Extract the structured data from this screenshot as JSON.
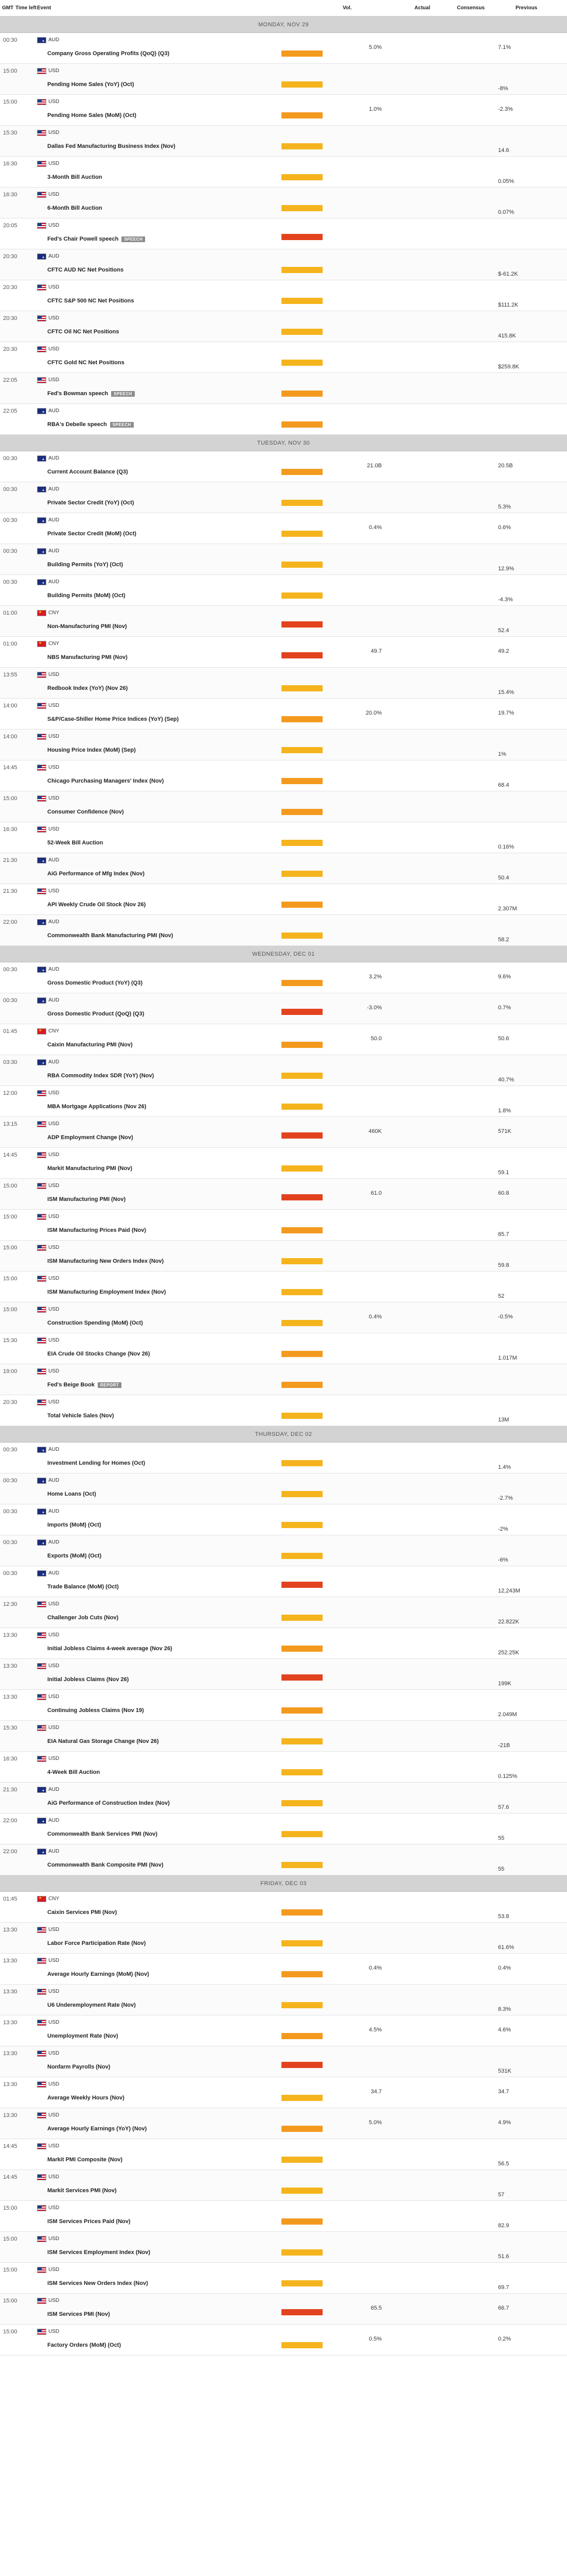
{
  "header": {
    "gmt": "GMT",
    "time_left": "Time left",
    "event": "Event",
    "vol": "Vol.",
    "actual": "Actual",
    "consensus": "Consensus",
    "previous": "Previous"
  },
  "days": [
    {
      "label": "MONDAY, NOV 29",
      "events": [
        {
          "time": "00:30",
          "currency": "AUD",
          "name": "Company Gross Operating Profits (QoQ) (Q3)",
          "volatility": "medium",
          "actual": "",
          "consensus": "5.0%",
          "previous": "7.1%"
        },
        {
          "time": "15:00",
          "currency": "USD",
          "name": "Pending Home Sales (YoY) (Oct)",
          "volatility": "low",
          "actual": "",
          "consensus": "",
          "previous": "-8%"
        },
        {
          "time": "15:00",
          "currency": "USD",
          "name": "Pending Home Sales (MoM) (Oct)",
          "volatility": "medium",
          "actual": "",
          "consensus": "1.0%",
          "previous": "-2.3%"
        },
        {
          "time": "15:30",
          "currency": "USD",
          "name": "Dallas Fed Manufacturing Business Index (Nov)",
          "volatility": "low",
          "actual": "",
          "consensus": "",
          "previous": "14.6"
        },
        {
          "time": "16:30",
          "currency": "USD",
          "name": "3-Month Bill Auction",
          "volatility": "low",
          "actual": "",
          "consensus": "",
          "previous": "0.05%"
        },
        {
          "time": "16:30",
          "currency": "USD",
          "name": "6-Month Bill Auction",
          "volatility": "low",
          "actual": "",
          "consensus": "",
          "previous": "0.07%"
        },
        {
          "time": "20:05",
          "currency": "USD",
          "name": "Fed's Chair Powell speech",
          "tag": "SPEECH",
          "volatility": "high",
          "actual": "",
          "consensus": "",
          "previous": ""
        },
        {
          "time": "20:30",
          "currency": "AUD",
          "name": "CFTC AUD NC Net Positions",
          "volatility": "low",
          "actual": "",
          "consensus": "",
          "previous": "$-61.2K"
        },
        {
          "time": "20:30",
          "currency": "USD",
          "name": "CFTC S&P 500 NC Net Positions",
          "volatility": "low",
          "actual": "",
          "consensus": "",
          "previous": "$111.2K"
        },
        {
          "time": "20:30",
          "currency": "USD",
          "name": "CFTC Oil NC Net Positions",
          "volatility": "low",
          "actual": "",
          "consensus": "",
          "previous": "415.8K"
        },
        {
          "time": "20:30",
          "currency": "USD",
          "name": "CFTC Gold NC Net Positions",
          "volatility": "low",
          "actual": "",
          "consensus": "",
          "previous": "$259.8K"
        },
        {
          "time": "22:05",
          "currency": "USD",
          "name": "Fed's Bowman speech",
          "tag": "SPEECH",
          "volatility": "medium",
          "actual": "",
          "consensus": "",
          "previous": ""
        },
        {
          "time": "22:05",
          "currency": "AUD",
          "name": "RBA's Debelle speech",
          "tag": "SPEECH",
          "volatility": "medium",
          "actual": "",
          "consensus": "",
          "previous": ""
        }
      ]
    },
    {
      "label": "TUESDAY, NOV 30",
      "events": [
        {
          "time": "00:30",
          "currency": "AUD",
          "name": "Current Account Balance (Q3)",
          "volatility": "medium",
          "actual": "",
          "consensus": "21.0B",
          "previous": "20.5B"
        },
        {
          "time": "00:30",
          "currency": "AUD",
          "name": "Private Sector Credit (YoY) (Oct)",
          "volatility": "low",
          "actual": "",
          "consensus": "",
          "previous": "5.3%"
        },
        {
          "time": "00:30",
          "currency": "AUD",
          "name": "Private Sector Credit (MoM) (Oct)",
          "volatility": "low",
          "actual": "",
          "consensus": "0.4%",
          "previous": "0.6%"
        },
        {
          "time": "00:30",
          "currency": "AUD",
          "name": "Building Permits (YoY) (Oct)",
          "volatility": "low",
          "actual": "",
          "consensus": "",
          "previous": "12.9%"
        },
        {
          "time": "00:30",
          "currency": "AUD",
          "name": "Building Permits (MoM) (Oct)",
          "volatility": "low",
          "actual": "",
          "consensus": "",
          "previous": "-4.3%"
        },
        {
          "time": "01:00",
          "currency": "CNY",
          "name": "Non-Manufacturing PMI (Nov)",
          "volatility": "high",
          "actual": "",
          "consensus": "",
          "previous": "52.4"
        },
        {
          "time": "01:00",
          "currency": "CNY",
          "name": "NBS Manufacturing PMI (Nov)",
          "volatility": "high",
          "actual": "",
          "consensus": "49.7",
          "previous": "49.2"
        },
        {
          "time": "13:55",
          "currency": "USD",
          "name": "Redbook Index (YoY) (Nov 26)",
          "volatility": "low",
          "actual": "",
          "consensus": "",
          "previous": "15.4%"
        },
        {
          "time": "14:00",
          "currency": "USD",
          "name": "S&P/Case-Shiller Home Price Indices (YoY) (Sep)",
          "volatility": "medium",
          "actual": "",
          "consensus": "20.0%",
          "previous": "19.7%"
        },
        {
          "time": "14:00",
          "currency": "USD",
          "name": "Housing Price Index (MoM) (Sep)",
          "volatility": "low",
          "actual": "",
          "consensus": "",
          "previous": "1%"
        },
        {
          "time": "14:45",
          "currency": "USD",
          "name": "Chicago Purchasing Managers' Index (Nov)",
          "volatility": "medium",
          "actual": "",
          "consensus": "",
          "previous": "68.4"
        },
        {
          "time": "15:00",
          "currency": "USD",
          "name": "Consumer Confidence (Nov)",
          "volatility": "medium",
          "actual": "",
          "consensus": "",
          "previous": ""
        },
        {
          "time": "16:30",
          "currency": "USD",
          "name": "52-Week Bill Auction",
          "volatility": "low",
          "actual": "",
          "consensus": "",
          "previous": "0.16%"
        },
        {
          "time": "21:30",
          "currency": "AUD",
          "name": "AiG Performance of Mfg Index (Nov)",
          "volatility": "low",
          "actual": "",
          "consensus": "",
          "previous": "50.4"
        },
        {
          "time": "21:30",
          "currency": "USD",
          "name": "API Weekly Crude Oil Stock (Nov 26)",
          "volatility": "medium",
          "actual": "",
          "consensus": "",
          "previous": "2.307M"
        },
        {
          "time": "22:00",
          "currency": "AUD",
          "name": "Commonwealth Bank Manufacturing PMI (Nov)",
          "volatility": "low",
          "actual": "",
          "consensus": "",
          "previous": "58.2"
        }
      ]
    },
    {
      "label": "WEDNESDAY, DEC 01",
      "events": [
        {
          "time": "00:30",
          "currency": "AUD",
          "name": "Gross Domestic Product (YoY) (Q3)",
          "volatility": "medium",
          "actual": "",
          "consensus": "3.2%",
          "previous": "9.6%"
        },
        {
          "time": "00:30",
          "currency": "AUD",
          "name": "Gross Domestic Product (QoQ) (Q3)",
          "volatility": "high",
          "actual": "",
          "consensus": "-3.0%",
          "previous": "0.7%"
        },
        {
          "time": "01:45",
          "currency": "CNY",
          "name": "Caixin Manufacturing PMI (Nov)",
          "volatility": "medium",
          "actual": "",
          "consensus": "50.0",
          "previous": "50.6"
        },
        {
          "time": "03:30",
          "currency": "AUD",
          "name": "RBA Commodity Index SDR (YoY) (Nov)",
          "volatility": "low",
          "actual": "",
          "consensus": "",
          "previous": "40.7%"
        },
        {
          "time": "12:00",
          "currency": "USD",
          "name": "MBA Mortgage Applications (Nov 26)",
          "volatility": "low",
          "actual": "",
          "consensus": "",
          "previous": "1.8%"
        },
        {
          "time": "13:15",
          "currency": "USD",
          "name": "ADP Employment Change (Nov)",
          "volatility": "high",
          "actual": "",
          "consensus": "460K",
          "previous": "571K"
        },
        {
          "time": "14:45",
          "currency": "USD",
          "name": "Markit Manufacturing PMI (Nov)",
          "volatility": "low",
          "actual": "",
          "consensus": "",
          "previous": "59.1"
        },
        {
          "time": "15:00",
          "currency": "USD",
          "name": "ISM Manufacturing PMI (Nov)",
          "volatility": "high",
          "actual": "",
          "consensus": "61.0",
          "previous": "60.8"
        },
        {
          "time": "15:00",
          "currency": "USD",
          "name": "ISM Manufacturing Prices Paid (Nov)",
          "volatility": "medium",
          "actual": "",
          "consensus": "",
          "previous": "85.7"
        },
        {
          "time": "15:00",
          "currency": "USD",
          "name": "ISM Manufacturing New Orders Index (Nov)",
          "volatility": "low",
          "actual": "",
          "consensus": "",
          "previous": "59.8"
        },
        {
          "time": "15:00",
          "currency": "USD",
          "name": "ISM Manufacturing Employment Index (Nov)",
          "volatility": "low",
          "actual": "",
          "consensus": "",
          "previous": "52"
        },
        {
          "time": "15:00",
          "currency": "USD",
          "name": "Construction Spending (MoM) (Oct)",
          "volatility": "low",
          "actual": "",
          "consensus": "0.4%",
          "previous": "-0.5%"
        },
        {
          "time": "15:30",
          "currency": "USD",
          "name": "EIA Crude Oil Stocks Change (Nov 26)",
          "volatility": "medium",
          "actual": "",
          "consensus": "",
          "previous": "1.017M"
        },
        {
          "time": "19:00",
          "currency": "USD",
          "name": "Fed's Beige Book",
          "tag": "REPORT",
          "volatility": "medium",
          "actual": "",
          "consensus": "",
          "previous": ""
        },
        {
          "time": "20:30",
          "currency": "USD",
          "name": "Total Vehicle Sales (Nov)",
          "volatility": "low",
          "actual": "",
          "consensus": "",
          "previous": "13M"
        }
      ]
    },
    {
      "label": "THURSDAY, DEC 02",
      "events": [
        {
          "time": "00:30",
          "currency": "AUD",
          "name": "Investment Lending for Homes (Oct)",
          "volatility": "low",
          "actual": "",
          "consensus": "",
          "previous": "1.4%"
        },
        {
          "time": "00:30",
          "currency": "AUD",
          "name": "Home Loans (Oct)",
          "volatility": "low",
          "actual": "",
          "consensus": "",
          "previous": "-2.7%"
        },
        {
          "time": "00:30",
          "currency": "AUD",
          "name": "Imports (MoM) (Oct)",
          "volatility": "low",
          "actual": "",
          "consensus": "",
          "previous": "-2%"
        },
        {
          "time": "00:30",
          "currency": "AUD",
          "name": "Exports (MoM) (Oct)",
          "volatility": "low",
          "actual": "",
          "consensus": "",
          "previous": "-6%"
        },
        {
          "time": "00:30",
          "currency": "AUD",
          "name": "Trade Balance (MoM) (Oct)",
          "volatility": "high",
          "actual": "",
          "consensus": "",
          "previous": "12,243M"
        },
        {
          "time": "12:30",
          "currency": "USD",
          "name": "Challenger Job Cuts (Nov)",
          "volatility": "low",
          "actual": "",
          "consensus": "",
          "previous": "22.822K"
        },
        {
          "time": "13:30",
          "currency": "USD",
          "name": "Initial Jobless Claims 4-week average (Nov 26)",
          "volatility": "medium",
          "actual": "",
          "consensus": "",
          "previous": "252.25K"
        },
        {
          "time": "13:30",
          "currency": "USD",
          "name": "Initial Jobless Claims (Nov 26)",
          "volatility": "high",
          "actual": "",
          "consensus": "",
          "previous": "199K"
        },
        {
          "time": "13:30",
          "currency": "USD",
          "name": "Continuing Jobless Claims (Nov 19)",
          "volatility": "medium",
          "actual": "",
          "consensus": "",
          "previous": "2.049M"
        },
        {
          "time": "15:30",
          "currency": "USD",
          "name": "EIA Natural Gas Storage Change (Nov 26)",
          "volatility": "low",
          "actual": "",
          "consensus": "",
          "previous": "-21B"
        },
        {
          "time": "16:30",
          "currency": "USD",
          "name": "4-Week Bill Auction",
          "volatility": "low",
          "actual": "",
          "consensus": "",
          "previous": "0.125%"
        },
        {
          "time": "21:30",
          "currency": "AUD",
          "name": "AiG Performance of Construction Index (Nov)",
          "volatility": "low",
          "actual": "",
          "consensus": "",
          "previous": "57.6"
        },
        {
          "time": "22:00",
          "currency": "AUD",
          "name": "Commonwealth Bank Services PMI (Nov)",
          "volatility": "low",
          "actual": "",
          "consensus": "",
          "previous": "55"
        },
        {
          "time": "22:00",
          "currency": "AUD",
          "name": "Commonwealth Bank Composite PMI (Nov)",
          "volatility": "low",
          "actual": "",
          "consensus": "",
          "previous": "55"
        }
      ]
    },
    {
      "label": "FRIDAY, DEC 03",
      "events": [
        {
          "time": "01:45",
          "currency": "CNY",
          "name": "Caixin Services PMI (Nov)",
          "volatility": "medium",
          "actual": "",
          "consensus": "",
          "previous": "53.8"
        },
        {
          "time": "13:30",
          "currency": "USD",
          "name": "Labor Force Participation Rate (Nov)",
          "volatility": "low",
          "actual": "",
          "consensus": "",
          "previous": "61.6%"
        },
        {
          "time": "13:30",
          "currency": "USD",
          "name": "Average Hourly Earnings (MoM) (Nov)",
          "volatility": "medium",
          "actual": "",
          "consensus": "0.4%",
          "previous": "0.4%"
        },
        {
          "time": "13:30",
          "currency": "USD",
          "name": "U6 Underemployment Rate (Nov)",
          "volatility": "low",
          "actual": "",
          "consensus": "",
          "previous": "8.3%"
        },
        {
          "time": "13:30",
          "currency": "USD",
          "name": "Unemployment Rate (Nov)",
          "volatility": "medium",
          "actual": "",
          "consensus": "4.5%",
          "previous": "4.6%"
        },
        {
          "time": "13:30",
          "currency": "USD",
          "name": "Nonfarm Payrolls (Nov)",
          "volatility": "high",
          "actual": "",
          "consensus": "",
          "previous": "531K"
        },
        {
          "time": "13:30",
          "currency": "USD",
          "name": "Average Weekly Hours (Nov)",
          "volatility": "low",
          "actual": "",
          "consensus": "34.7",
          "previous": "34.7"
        },
        {
          "time": "13:30",
          "currency": "USD",
          "name": "Average Hourly Earnings (YoY) (Nov)",
          "volatility": "medium",
          "actual": "",
          "consensus": "5.0%",
          "previous": "4.9%"
        },
        {
          "time": "14:45",
          "currency": "USD",
          "name": "Markit PMI Composite (Nov)",
          "volatility": "low",
          "actual": "",
          "consensus": "",
          "previous": "56.5"
        },
        {
          "time": "14:45",
          "currency": "USD",
          "name": "Markit Services PMI (Nov)",
          "volatility": "low",
          "actual": "",
          "consensus": "",
          "previous": "57"
        },
        {
          "time": "15:00",
          "currency": "USD",
          "name": "ISM Services Prices Paid (Nov)",
          "volatility": "medium",
          "actual": "",
          "consensus": "",
          "previous": "82.9"
        },
        {
          "time": "15:00",
          "currency": "USD",
          "name": "ISM Services Employment Index (Nov)",
          "volatility": "low",
          "actual": "",
          "consensus": "",
          "previous": "51.6"
        },
        {
          "time": "15:00",
          "currency": "USD",
          "name": "ISM Services New Orders Index (Nov)",
          "volatility": "low",
          "actual": "",
          "consensus": "",
          "previous": "69.7"
        },
        {
          "time": "15:00",
          "currency": "USD",
          "name": "ISM Services PMI (Nov)",
          "volatility": "high",
          "actual": "",
          "consensus": "65.5",
          "previous": "66.7"
        },
        {
          "time": "15:00",
          "currency": "USD",
          "name": "Factory Orders (MoM) (Oct)",
          "volatility": "low",
          "actual": "",
          "consensus": "0.5%",
          "previous": "0.2%"
        }
      ]
    }
  ]
}
